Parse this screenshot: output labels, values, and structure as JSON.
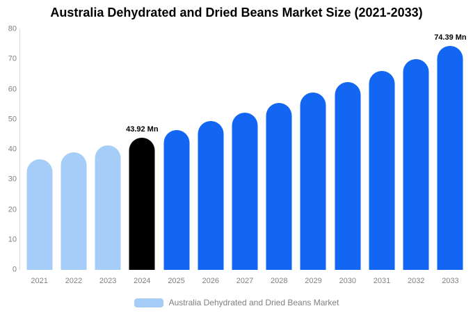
{
  "chart_data": {
    "type": "bar",
    "title": "Australia Dehydrated and Dried Beans Market Size (2021-2033)",
    "categories": [
      "2021",
      "2022",
      "2023",
      "2024",
      "2025",
      "2026",
      "2027",
      "2028",
      "2029",
      "2030",
      "2031",
      "2032",
      "2033"
    ],
    "values": [
      36.85,
      39.07,
      41.42,
      43.92,
      46.57,
      49.37,
      52.35,
      55.5,
      58.85,
      62.39,
      66.15,
      70.14,
      74.39
    ],
    "bar_colors": [
      "#a6cdf7",
      "#a6cdf7",
      "#a6cdf7",
      "#000000",
      "#1266f1",
      "#1266f1",
      "#1266f1",
      "#1266f1",
      "#1266f1",
      "#1266f1",
      "#1266f1",
      "#1266f1",
      "#1266f1"
    ],
    "point_labels": [
      "",
      "",
      "",
      "43.92 Mn",
      "",
      "",
      "",
      "",
      "",
      "",
      "",
      "",
      "74.39 Mn"
    ],
    "xlabel": "",
    "ylabel": "",
    "ylim": [
      0,
      80
    ],
    "yticks": [
      0,
      10,
      20,
      30,
      40,
      50,
      60,
      70,
      80
    ],
    "grid": false,
    "legend_position": "bottom",
    "legend": [
      {
        "label": "Australia Dehydrated and Dried Beans Market",
        "color": "#a6cdf7"
      }
    ]
  }
}
